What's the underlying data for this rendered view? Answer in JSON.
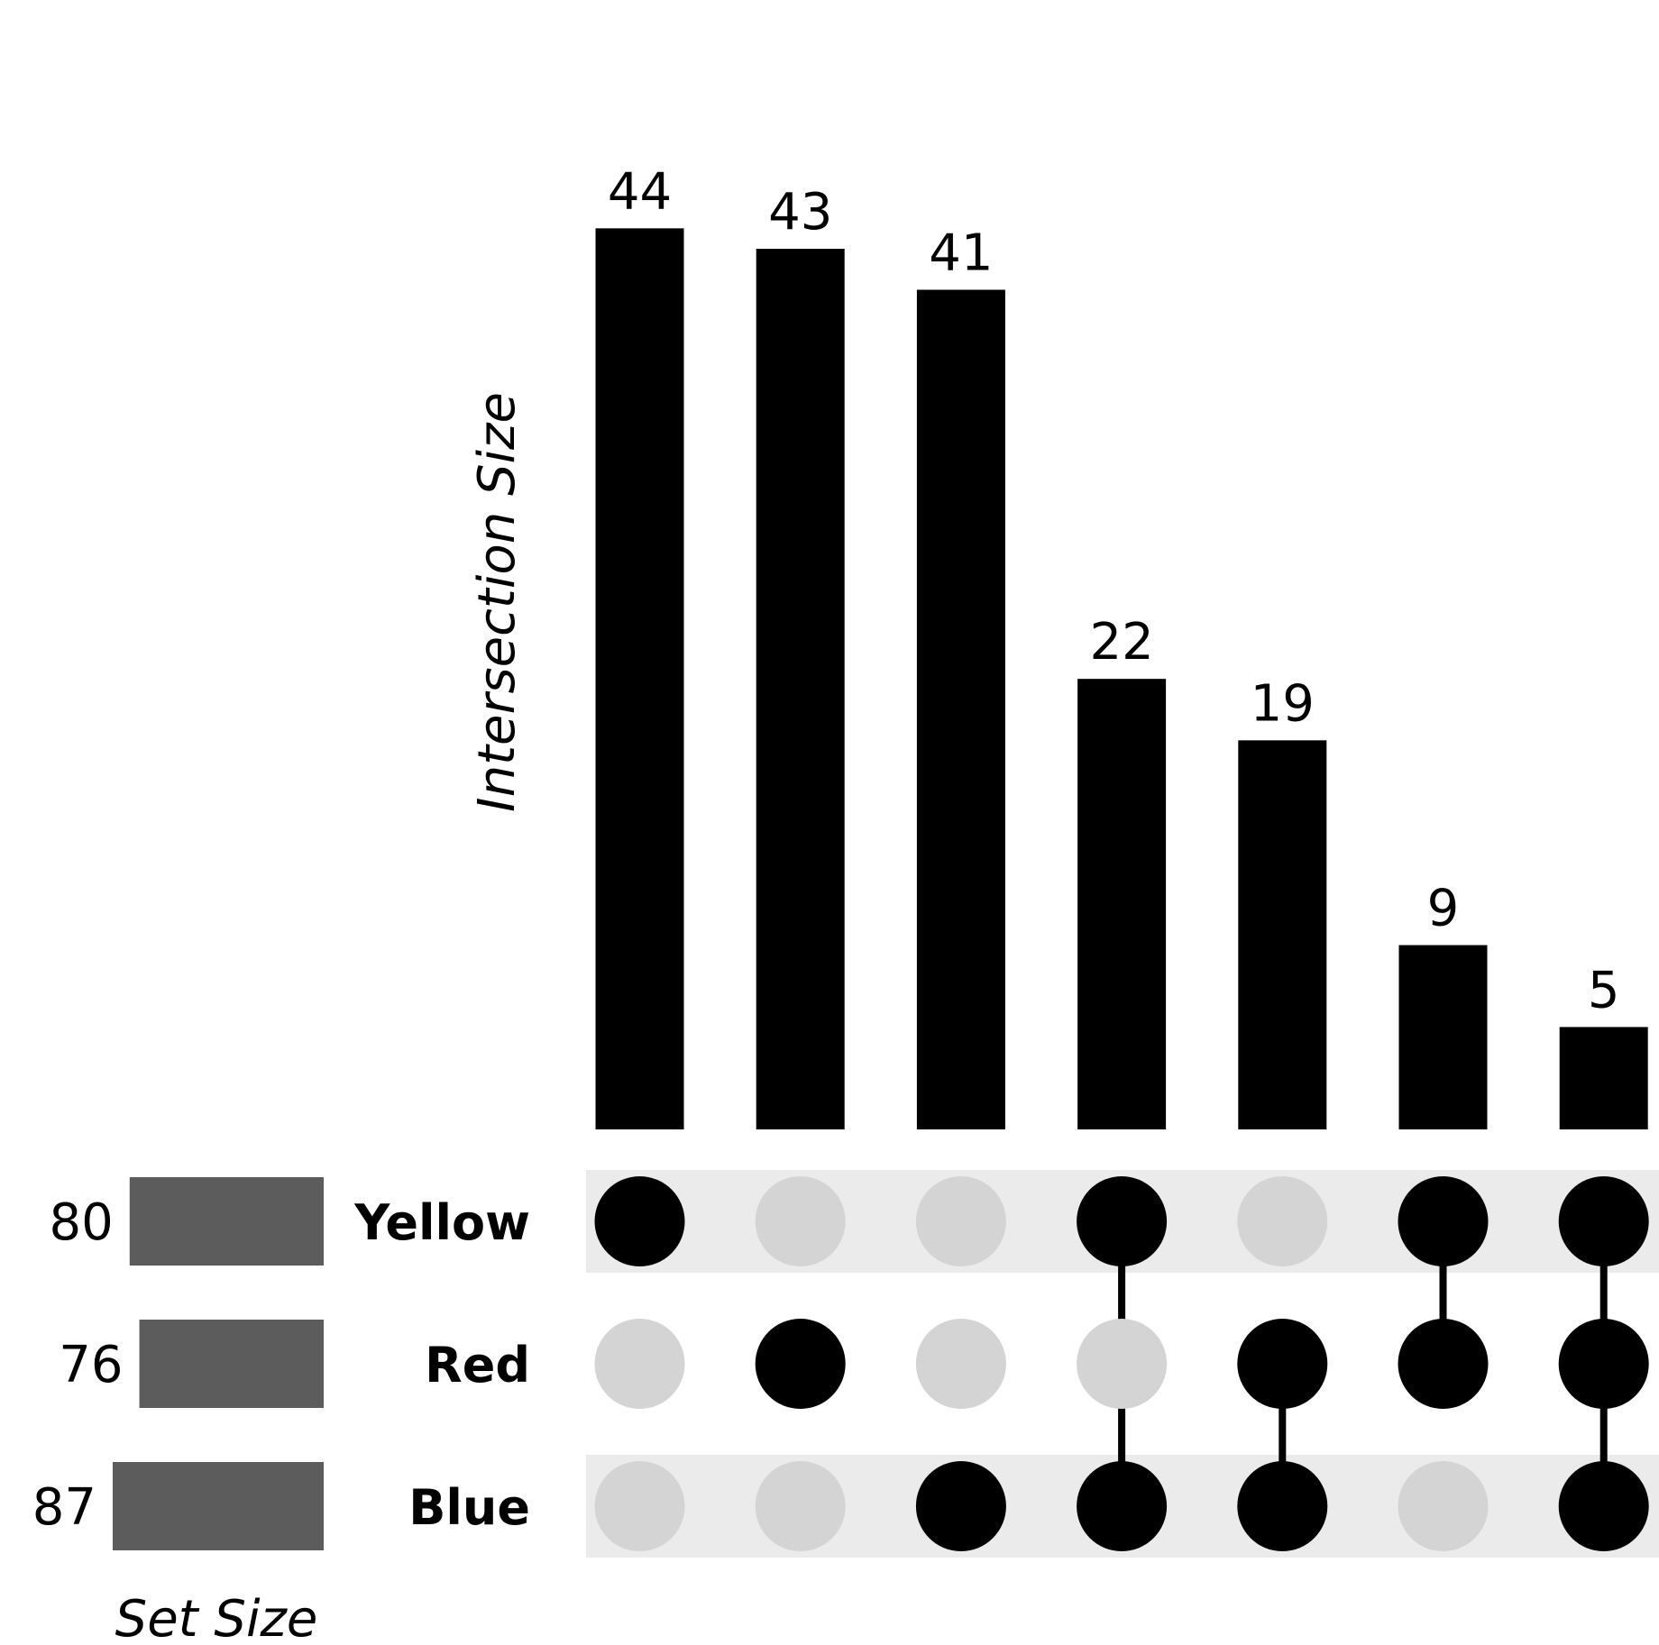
{
  "chart_data": {
    "type": "upset",
    "ylabel": "Intersection Size",
    "set_size_label": "Set Size",
    "sets": [
      {
        "name": "Yellow",
        "size": 80
      },
      {
        "name": "Red",
        "size": 76
      },
      {
        "name": "Blue",
        "size": 87
      }
    ],
    "intersections": [
      {
        "members": [
          "Yellow"
        ],
        "size": 44
      },
      {
        "members": [
          "Red"
        ],
        "size": 43
      },
      {
        "members": [
          "Blue"
        ],
        "size": 41
      },
      {
        "members": [
          "Yellow",
          "Blue"
        ],
        "size": 22
      },
      {
        "members": [
          "Red",
          "Blue"
        ],
        "size": 19
      },
      {
        "members": [
          "Yellow",
          "Red"
        ],
        "size": 9
      },
      {
        "members": [
          "Yellow",
          "Red",
          "Blue"
        ],
        "size": 5
      }
    ],
    "colors": {
      "bar": "#000000",
      "set_bar": "#5c5c5c",
      "dot_active": "#000000",
      "dot_inactive": "#d4d4d4",
      "row_stripe": "#ebebeb"
    }
  }
}
